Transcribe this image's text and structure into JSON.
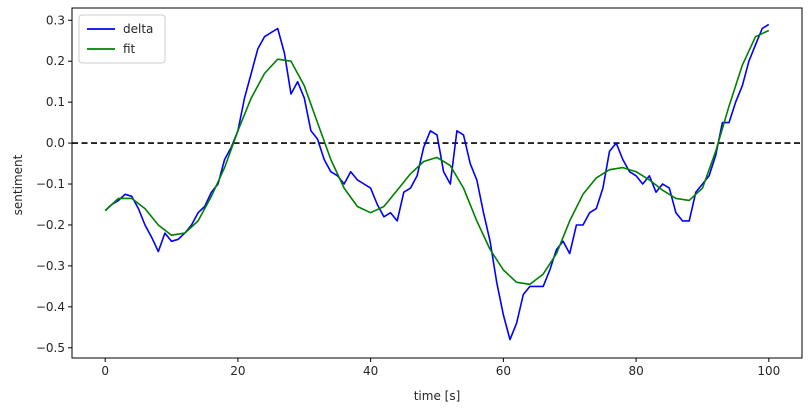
{
  "chart_data": {
    "type": "line",
    "title": "",
    "xlabel": "time [s]",
    "ylabel": "sentiment",
    "xlim": [
      -5,
      105
    ],
    "ylim": [
      -0.525,
      0.33
    ],
    "xticks": [
      0,
      20,
      40,
      60,
      80,
      100
    ],
    "yticks": [
      -0.5,
      -0.4,
      -0.3,
      -0.2,
      -0.1,
      0.0,
      0.1,
      0.2,
      0.3
    ],
    "xtick_labels": [
      "0",
      "20",
      "40",
      "60",
      "80",
      "100"
    ],
    "ytick_labels": [
      "−0.5",
      "−0.4",
      "−0.3",
      "−0.2",
      "−0.1",
      "0.0",
      "0.1",
      "0.2",
      "0.3"
    ],
    "grid": false,
    "legend_position": "top-left",
    "reference_line": {
      "y": 0.0,
      "style": "dashed",
      "color": "#000000"
    },
    "series": [
      {
        "name": "delta",
        "color": "#0000ff",
        "x": [
          0,
          1,
          2,
          3,
          4,
          5,
          6,
          7,
          8,
          9,
          10,
          11,
          12,
          13,
          14,
          15,
          16,
          17,
          18,
          19,
          20,
          21,
          22,
          23,
          24,
          25,
          26,
          27,
          28,
          29,
          30,
          31,
          32,
          33,
          34,
          35,
          36,
          37,
          38,
          39,
          40,
          41,
          42,
          43,
          44,
          45,
          46,
          47,
          48,
          49,
          50,
          51,
          52,
          53,
          54,
          55,
          56,
          57,
          58,
          59,
          60,
          61,
          62,
          63,
          64,
          65,
          66,
          67,
          68,
          69,
          70,
          71,
          72,
          73,
          74,
          75,
          76,
          77,
          78,
          79,
          80,
          81,
          82,
          83,
          84,
          85,
          86,
          87,
          88,
          89,
          90,
          91,
          92,
          93,
          94,
          95,
          96,
          97,
          98,
          99,
          100
        ],
        "values": [
          -0.165,
          -0.15,
          -0.14,
          -0.125,
          -0.13,
          -0.16,
          -0.2,
          -0.23,
          -0.265,
          -0.22,
          -0.24,
          -0.235,
          -0.22,
          -0.2,
          -0.17,
          -0.155,
          -0.12,
          -0.1,
          -0.04,
          -0.01,
          0.03,
          0.11,
          0.17,
          0.23,
          0.26,
          0.27,
          0.28,
          0.22,
          0.12,
          0.15,
          0.11,
          0.03,
          0.01,
          -0.04,
          -0.07,
          -0.08,
          -0.1,
          -0.07,
          -0.09,
          -0.1,
          -0.11,
          -0.15,
          -0.18,
          -0.17,
          -0.19,
          -0.12,
          -0.11,
          -0.08,
          -0.01,
          0.03,
          0.02,
          -0.07,
          -0.1,
          0.03,
          0.02,
          -0.05,
          -0.09,
          -0.17,
          -0.24,
          -0.34,
          -0.42,
          -0.48,
          -0.44,
          -0.37,
          -0.35,
          -0.35,
          -0.35,
          -0.31,
          -0.26,
          -0.24,
          -0.27,
          -0.2,
          -0.2,
          -0.17,
          -0.16,
          -0.11,
          -0.02,
          0.0,
          -0.04,
          -0.07,
          -0.08,
          -0.1,
          -0.08,
          -0.12,
          -0.1,
          -0.11,
          -0.17,
          -0.19,
          -0.19,
          -0.12,
          -0.1,
          -0.08,
          -0.03,
          0.05,
          0.05,
          0.1,
          0.14,
          0.2,
          0.24,
          0.28,
          0.29
        ]
      },
      {
        "name": "fit",
        "color": "#008000",
        "x": [
          0,
          2,
          4,
          6,
          8,
          10,
          12,
          14,
          16,
          18,
          20,
          22,
          24,
          26,
          28,
          30,
          32,
          34,
          36,
          38,
          40,
          42,
          44,
          46,
          48,
          50,
          52,
          54,
          56,
          58,
          60,
          62,
          64,
          66,
          68,
          70,
          72,
          74,
          76,
          78,
          80,
          82,
          84,
          86,
          88,
          90,
          92,
          94,
          96,
          98,
          100
        ],
        "values": [
          -0.165,
          -0.135,
          -0.135,
          -0.16,
          -0.2,
          -0.225,
          -0.22,
          -0.19,
          -0.13,
          -0.06,
          0.03,
          0.11,
          0.17,
          0.205,
          0.2,
          0.14,
          0.05,
          -0.04,
          -0.11,
          -0.155,
          -0.17,
          -0.155,
          -0.115,
          -0.075,
          -0.045,
          -0.035,
          -0.055,
          -0.11,
          -0.19,
          -0.26,
          -0.31,
          -0.34,
          -0.345,
          -0.32,
          -0.27,
          -0.19,
          -0.125,
          -0.085,
          -0.065,
          -0.06,
          -0.07,
          -0.09,
          -0.115,
          -0.135,
          -0.14,
          -0.11,
          -0.02,
          0.09,
          0.19,
          0.26,
          0.275
        ]
      }
    ]
  }
}
